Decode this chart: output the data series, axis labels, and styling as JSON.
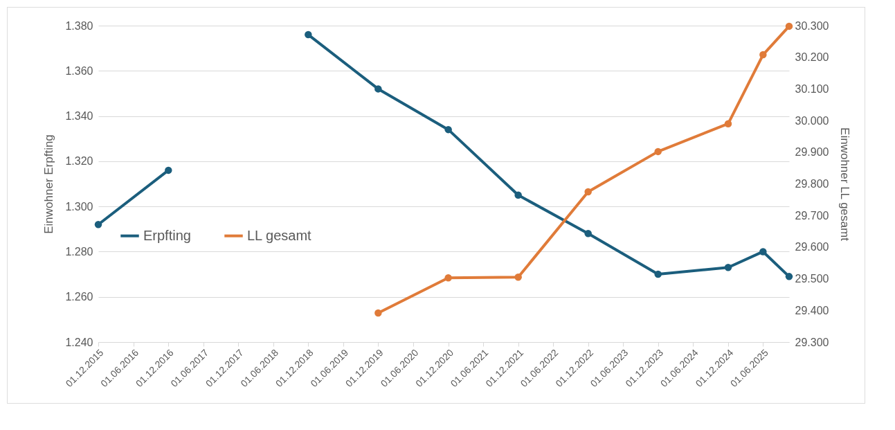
{
  "chart_data": {
    "type": "line",
    "ylabel": "Einwohner Erpfting",
    "y2label": "Einwohner LL gesamt",
    "series": [
      {
        "name": "Erpfting",
        "color": "#1b5e7d",
        "x": [
          "2015-12-01",
          "2016-12-01",
          "2017-12-01",
          "2018-12-01",
          "2019-12-01",
          "2020-12-01",
          "2021-12-01",
          "2022-12-01",
          "2023-12-01",
          "2024-12-01",
          "2025-06-01",
          "2025-10-15"
        ],
        "values": [
          1292,
          1316,
          null,
          1376,
          1352,
          1334,
          1305,
          1288,
          1270,
          1273,
          1280,
          1269
        ]
      },
      {
        "name": "LL gesamt",
        "color": "#e07b39",
        "axis": "y2",
        "x": [
          "2019-12-01",
          "2020-12-01",
          "2021-12-01",
          "2022-12-01",
          "2023-12-01",
          "2024-12-01",
          "2025-06-01",
          "2025-10-15"
        ],
        "values": [
          29392,
          29503,
          29505,
          29775,
          29902,
          29990,
          30208,
          30298
        ]
      }
    ],
    "xlim": [
      "2015-12-01",
      "2025-10-15"
    ],
    "xticks": [
      {
        "value": "2015-12-01",
        "label": "01.12.2015"
      },
      {
        "value": "2016-06-01",
        "label": "01.06.2016"
      },
      {
        "value": "2016-12-01",
        "label": "01.12.2016"
      },
      {
        "value": "2017-06-01",
        "label": "01.06.2017"
      },
      {
        "value": "2017-12-01",
        "label": "01.12.2017"
      },
      {
        "value": "2018-06-01",
        "label": "01.06.2018"
      },
      {
        "value": "2018-12-01",
        "label": "01.12.2018"
      },
      {
        "value": "2019-06-01",
        "label": "01.06.2019"
      },
      {
        "value": "2019-12-01",
        "label": "01.12.2019"
      },
      {
        "value": "2020-06-01",
        "label": "01.06.2020"
      },
      {
        "value": "2020-12-01",
        "label": "01.12.2020"
      },
      {
        "value": "2021-06-01",
        "label": "01.06.2021"
      },
      {
        "value": "2021-12-01",
        "label": "01.12.2021"
      },
      {
        "value": "2022-06-01",
        "label": "01.06.2022"
      },
      {
        "value": "2022-12-01",
        "label": "01.12.2022"
      },
      {
        "value": "2023-06-01",
        "label": "01.06.2023"
      },
      {
        "value": "2023-12-01",
        "label": "01.12.2023"
      },
      {
        "value": "2024-06-01",
        "label": "01.06.2024"
      },
      {
        "value": "2024-12-01",
        "label": "01.12.2024"
      },
      {
        "value": "2025-06-01",
        "label": "01.06.2025"
      }
    ],
    "ylim": [
      1240,
      1380
    ],
    "yticks": [
      {
        "value": 1240,
        "label": "1.240"
      },
      {
        "value": 1260,
        "label": "1.260"
      },
      {
        "value": 1280,
        "label": "1.280"
      },
      {
        "value": 1300,
        "label": "1.300"
      },
      {
        "value": 1320,
        "label": "1.320"
      },
      {
        "value": 1340,
        "label": "1.340"
      },
      {
        "value": 1360,
        "label": "1.360"
      },
      {
        "value": 1380,
        "label": "1.380"
      }
    ],
    "y2lim": [
      29300,
      30300
    ],
    "y2ticks": [
      {
        "value": 29300,
        "label": "29.300"
      },
      {
        "value": 29400,
        "label": "29.400"
      },
      {
        "value": 29500,
        "label": "29.500"
      },
      {
        "value": 29600,
        "label": "29.600"
      },
      {
        "value": 29700,
        "label": "29.700"
      },
      {
        "value": 29800,
        "label": "29.800"
      },
      {
        "value": 29900,
        "label": "29.900"
      },
      {
        "value": 30000,
        "label": "30.000"
      },
      {
        "value": 30100,
        "label": "30.100"
      },
      {
        "value": 30200,
        "label": "30.200"
      },
      {
        "value": 30300,
        "label": "30.300"
      }
    ],
    "grid": "y",
    "legend": "left",
    "marker": "circle",
    "line_style": "solid"
  }
}
